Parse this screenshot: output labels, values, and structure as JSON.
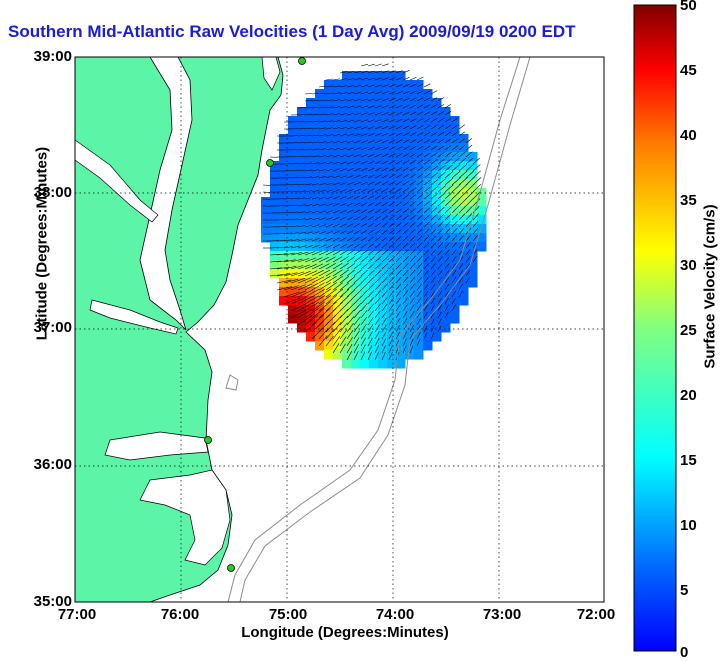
{
  "title": "Southern Mid-Atlantic Raw Velocities (1 Day Avg) 2009/09/19 0200 EDT",
  "axes": {
    "xlabel": "Longitude (Degrees:Minutes)",
    "ylabel": "Latitude (Degrees:Minutes)",
    "x_ticks": [
      "77:00",
      "76:00",
      "75:00",
      "74:00",
      "73:00",
      "72:00"
    ],
    "y_ticks": [
      "39:00",
      "38:00",
      "37:00",
      "36:00",
      "35:00"
    ],
    "grid": "dotted"
  },
  "colorbar": {
    "label": "Surface Velocity (cm/s)",
    "ticks": [
      "50",
      "45",
      "40",
      "35",
      "30",
      "25",
      "20",
      "15",
      "10",
      "5",
      "0"
    ],
    "range": [
      0,
      50
    ],
    "colormap": "jet"
  },
  "colors": {
    "title": "#1a1ae0",
    "land": "#5cf5a8",
    "ocean": "#ffffff",
    "bathymetry": "#8c8c8c",
    "station": "#22cc22"
  },
  "map": {
    "stations_lonlat": [
      [
        74.9,
        38.95
      ],
      [
        75.15,
        38.2
      ],
      [
        75.8,
        36.18
      ],
      [
        75.5,
        35.25
      ]
    ]
  }
}
